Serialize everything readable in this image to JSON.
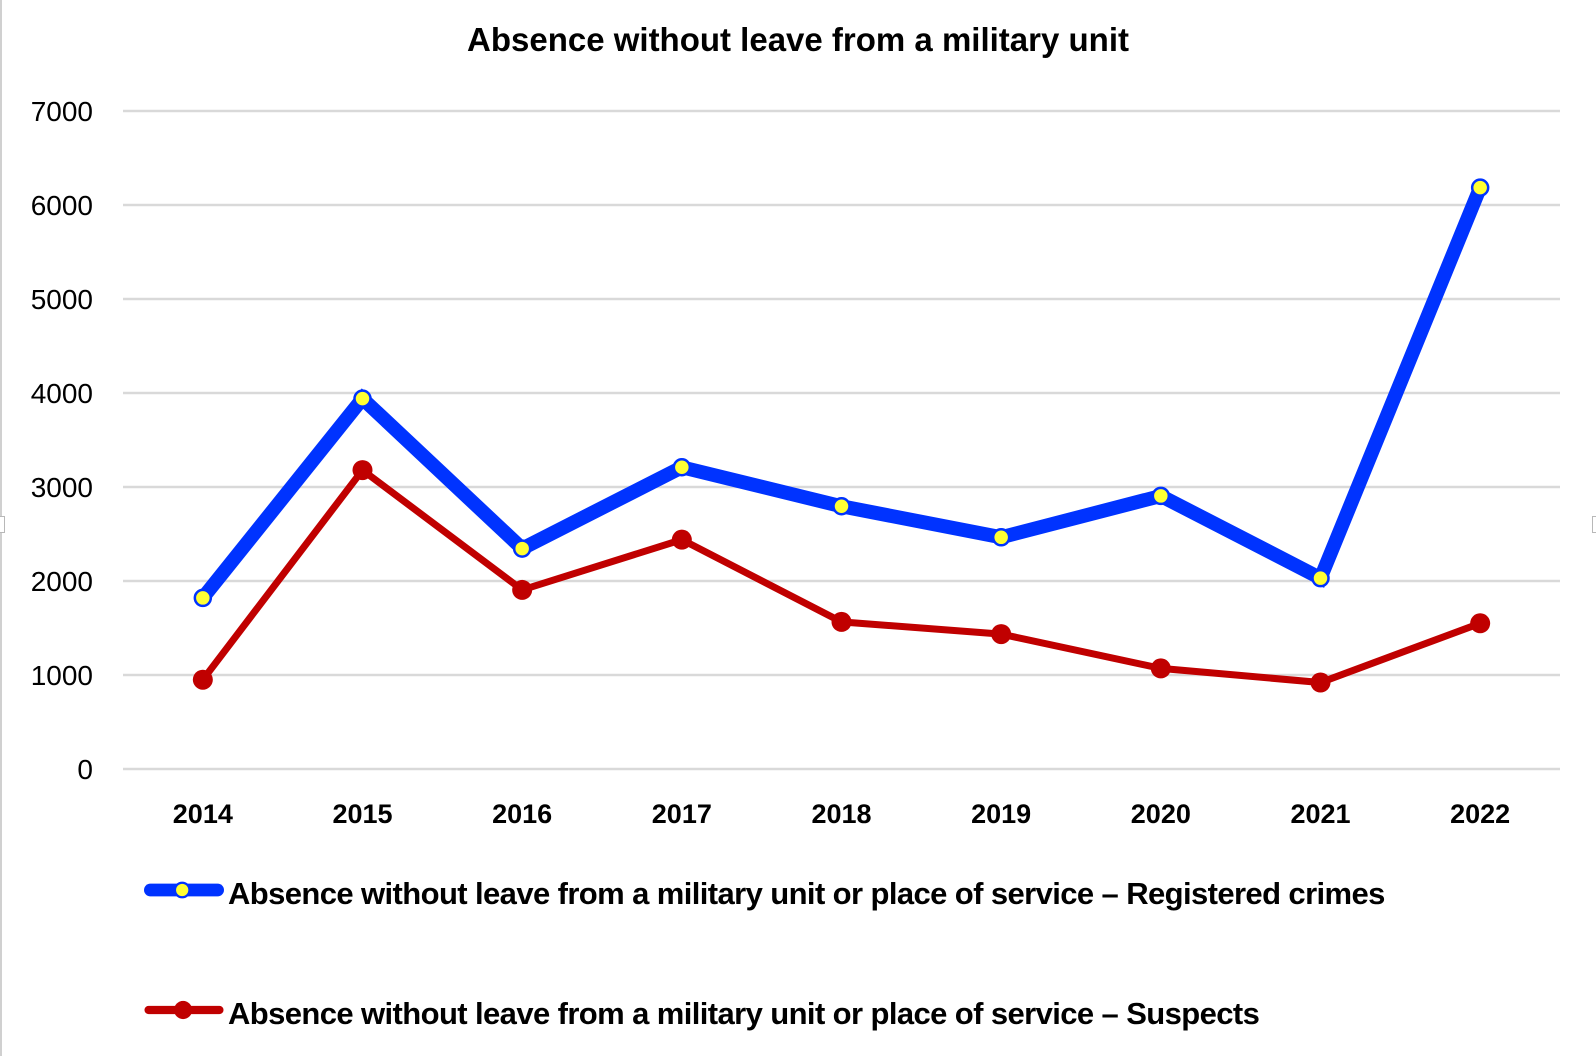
{
  "chart_data": {
    "type": "line",
    "title": "Absence without leave from a military unit",
    "xlabel": "",
    "ylabel": "",
    "categories": [
      "2014",
      "2015",
      "2016",
      "2017",
      "2018",
      "2019",
      "2020",
      "2021",
      "2022"
    ],
    "ylim": [
      0,
      7000
    ],
    "yticks": [
      "0",
      "1000",
      "2000",
      "3000",
      "4000",
      "5000",
      "6000",
      "7000"
    ],
    "grid": true,
    "legend_position": "bottom",
    "series": [
      {
        "name": "Absence without leave from a military unit or place of service – Registered crimes",
        "color": "#0033FF",
        "marker_fill": "#FFFF33",
        "values": [
          1820,
          3940,
          2345,
          3210,
          2795,
          2465,
          2905,
          2030,
          6185
        ]
      },
      {
        "name": "Absence without leave from a military unit or place of service – Suspects",
        "color": "#C00000",
        "marker_fill": "#C00000",
        "values": [
          950,
          3180,
          1905,
          2440,
          1565,
          1435,
          1070,
          920,
          1550
        ]
      }
    ]
  }
}
